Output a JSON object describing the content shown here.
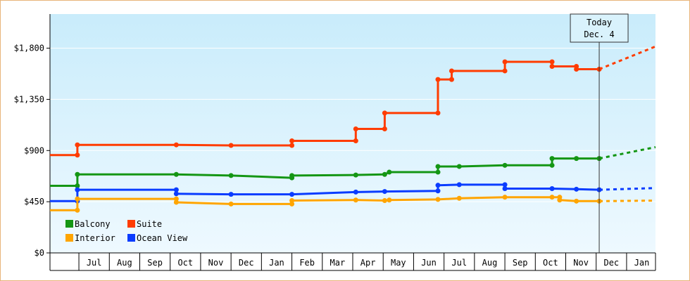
{
  "chart_data": {
    "type": "line",
    "y_ticks": [
      0,
      450,
      900,
      1350,
      1800
    ],
    "y_tick_labels": [
      "$0",
      "$450",
      "$900",
      "$1,350",
      "$1,800"
    ],
    "ylim": [
      0,
      2100
    ],
    "x_tick_labels": [
      "Jul",
      "Aug",
      "Sep",
      "Oct",
      "Nov",
      "Dec",
      "Jan",
      "Feb",
      "Mar",
      "Apr",
      "May",
      "Jun",
      "Jul",
      "Aug",
      "Sep",
      "Oct",
      "Nov",
      "Dec",
      "Jan"
    ],
    "x_tick_months": [
      0.5,
      1.5,
      2.5,
      3.5,
      4.5,
      5.5,
      6.5,
      7.5,
      8.5,
      9.5,
      10.5,
      11.5,
      12.5,
      13.5,
      14.5,
      15.5,
      16.5,
      17.5,
      18.5
    ],
    "x_range_months": [
      -0.95,
      18.95
    ],
    "x_month_boundaries": [
      -0.95,
      0,
      1,
      2,
      3,
      4,
      5,
      6,
      7,
      8,
      9,
      10,
      11,
      12,
      13,
      14,
      15,
      16,
      17,
      18,
      18.95
    ],
    "today": {
      "label_line1": "Today",
      "label_line2": "Dec. 4",
      "month_index": 17.1
    },
    "legend": [
      {
        "name": "Balcony",
        "color": "#149614"
      },
      {
        "name": "Suite",
        "color": "#ff3c00"
      },
      {
        "name": "Interior",
        "color": "#ffa500"
      },
      {
        "name": "Ocean View",
        "color": "#0a3cff"
      }
    ],
    "legend_order": [
      "Balcony",
      "Suite",
      "Interior",
      "Ocean View"
    ],
    "series": [
      {
        "name": "Suite",
        "color": "#ff3c00",
        "points": [
          [
            -0.95,
            860
          ],
          [
            -0.05,
            860
          ],
          [
            -0.05,
            950
          ],
          [
            3.2,
            950
          ],
          [
            5.0,
            945
          ],
          [
            7.0,
            945
          ],
          [
            7.0,
            985
          ],
          [
            9.1,
            985
          ],
          [
            9.1,
            1090
          ],
          [
            10.05,
            1090
          ],
          [
            10.05,
            1230
          ],
          [
            11.8,
            1230
          ],
          [
            11.8,
            1525
          ],
          [
            12.25,
            1525
          ],
          [
            12.25,
            1600
          ],
          [
            14.0,
            1600
          ],
          [
            14.0,
            1680
          ],
          [
            15.55,
            1680
          ],
          [
            15.55,
            1640
          ],
          [
            16.35,
            1640
          ],
          [
            16.35,
            1615
          ],
          [
            17.1,
            1615
          ]
        ],
        "forecast_end": [
          18.95,
          1815
        ]
      },
      {
        "name": "Balcony",
        "color": "#149614",
        "points": [
          [
            -0.95,
            590
          ],
          [
            -0.05,
            590
          ],
          [
            -0.05,
            690
          ],
          [
            3.2,
            690
          ],
          [
            5.0,
            680
          ],
          [
            7.0,
            660
          ],
          [
            7.0,
            680
          ],
          [
            9.1,
            685
          ],
          [
            10.05,
            690
          ],
          [
            10.2,
            710
          ],
          [
            11.8,
            710
          ],
          [
            11.8,
            760
          ],
          [
            12.5,
            760
          ],
          [
            14.0,
            770
          ],
          [
            15.55,
            770
          ],
          [
            15.55,
            830
          ],
          [
            16.35,
            830
          ],
          [
            17.1,
            830
          ]
        ],
        "forecast_end": [
          18.95,
          930
        ]
      },
      {
        "name": "Ocean View",
        "color": "#0a3cff",
        "points": [
          [
            -0.95,
            455
          ],
          [
            -0.05,
            455
          ],
          [
            -0.05,
            555
          ],
          [
            3.2,
            555
          ],
          [
            3.2,
            520
          ],
          [
            5.0,
            515
          ],
          [
            7.0,
            515
          ],
          [
            9.1,
            535
          ],
          [
            10.05,
            540
          ],
          [
            11.8,
            545
          ],
          [
            11.8,
            595
          ],
          [
            12.5,
            600
          ],
          [
            14.0,
            600
          ],
          [
            14.0,
            565
          ],
          [
            15.55,
            565
          ],
          [
            16.35,
            560
          ],
          [
            17.1,
            555
          ]
        ],
        "forecast_end": [
          18.95,
          570
        ]
      },
      {
        "name": "Interior",
        "color": "#ffa500",
        "points": [
          [
            -0.95,
            375
          ],
          [
            -0.05,
            375
          ],
          [
            -0.05,
            475
          ],
          [
            3.2,
            475
          ],
          [
            3.2,
            445
          ],
          [
            5.0,
            430
          ],
          [
            7.0,
            430
          ],
          [
            7.0,
            460
          ],
          [
            9.1,
            465
          ],
          [
            10.05,
            460
          ],
          [
            10.2,
            465
          ],
          [
            11.8,
            470
          ],
          [
            12.5,
            480
          ],
          [
            14.0,
            490
          ],
          [
            15.55,
            490
          ],
          [
            15.8,
            490
          ],
          [
            15.8,
            465
          ],
          [
            16.35,
            455
          ],
          [
            17.1,
            455
          ]
        ],
        "forecast_end": [
          18.95,
          460
        ]
      }
    ]
  }
}
